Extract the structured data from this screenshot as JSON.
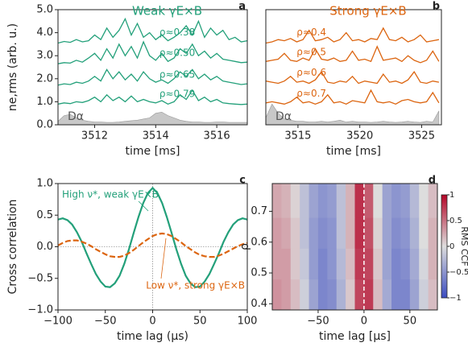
{
  "chart_data": [
    {
      "type": "line",
      "label": "a",
      "title": "Weak γE×B",
      "title_color": "#23a07a",
      "xlabel": "time [ms]",
      "ylabel": "ne,rms (arb. u.)",
      "xlim": [
        3510.8,
        3517
      ],
      "ylim": [
        0,
        5
      ],
      "xticks": [
        3512,
        3514,
        3516
      ],
      "yticks": [
        {
          "value": 0,
          "label": "0.0"
        },
        {
          "value": 1,
          "label": "1.0"
        },
        {
          "value": 2,
          "label": "2.0"
        },
        {
          "value": 3,
          "label": "3.0"
        },
        {
          "value": 4,
          "label": "4.0"
        },
        {
          "value": 5,
          "label": "5.0"
        }
      ],
      "x": [
        3510.8,
        3511,
        3511.2,
        3511.4,
        3511.6,
        3511.8,
        3512,
        3512.2,
        3512.4,
        3512.6,
        3512.8,
        3513,
        3513.2,
        3513.4,
        3513.6,
        3513.8,
        3514,
        3514.2,
        3514.4,
        3514.6,
        3514.8,
        3515,
        3515.2,
        3515.4,
        3515.6,
        3515.8,
        3516,
        3516.2,
        3516.4,
        3516.6,
        3516.8,
        3517
      ],
      "area": {
        "name": "Dα",
        "color": "#c8c8c8",
        "values": [
          0.15,
          0.4,
          0.45,
          0.3,
          0.2,
          0.15,
          0.12,
          0.12,
          0.1,
          0.1,
          0.12,
          0.15,
          0.18,
          0.2,
          0.25,
          0.3,
          0.5,
          0.55,
          0.4,
          0.3,
          0.2,
          0.15,
          0.12,
          0.12,
          0.1,
          0.1,
          0.12,
          0.12,
          0.1,
          0.1,
          0.1,
          0.1
        ]
      },
      "series": [
        {
          "name": "ρ≈0.38",
          "color": "#23a07a",
          "values": [
            3.55,
            3.62,
            3.58,
            3.7,
            3.6,
            3.65,
            3.9,
            3.7,
            4.2,
            3.8,
            4.1,
            4.6,
            3.9,
            4.4,
            3.8,
            4.0,
            3.7,
            3.9,
            3.65,
            3.8,
            4.0,
            4.3,
            3.9,
            4.5,
            3.8,
            4.2,
            3.9,
            4.1,
            3.7,
            3.8,
            3.6,
            3.65
          ]
        },
        {
          "name": "ρ≈0.50",
          "color": "#23a07a",
          "values": [
            2.65,
            2.7,
            2.68,
            2.8,
            2.72,
            2.9,
            3.1,
            2.8,
            3.3,
            2.9,
            3.5,
            3.0,
            3.4,
            2.9,
            3.6,
            3.0,
            2.8,
            3.1,
            2.75,
            2.9,
            3.3,
            3.1,
            3.5,
            3.0,
            3.2,
            2.9,
            3.1,
            2.85,
            2.8,
            2.75,
            2.7,
            2.72
          ]
        },
        {
          "name": "ρ≈0.65",
          "color": "#23a07a",
          "values": [
            1.72,
            1.78,
            1.75,
            1.85,
            1.8,
            1.9,
            2.1,
            1.9,
            2.4,
            2.0,
            2.3,
            1.95,
            2.2,
            1.9,
            2.3,
            2.0,
            1.85,
            1.95,
            1.8,
            2.0,
            2.3,
            2.1,
            2.4,
            2.0,
            2.2,
            1.95,
            2.1,
            1.9,
            1.85,
            1.8,
            1.75,
            1.78
          ]
        },
        {
          "name": "ρ≈0.79",
          "color": "#23a07a",
          "values": [
            0.9,
            0.95,
            0.92,
            1.0,
            0.97,
            1.05,
            1.2,
            1.0,
            1.3,
            1.05,
            1.2,
            1.0,
            1.25,
            1.0,
            1.1,
            1.0,
            0.95,
            1.05,
            0.9,
            1.0,
            1.3,
            1.1,
            1.5,
            1.05,
            1.2,
            1.0,
            1.1,
            0.95,
            0.92,
            0.9,
            0.88,
            0.9
          ]
        }
      ]
    },
    {
      "type": "line",
      "label": "b",
      "title": "Strong γE×B",
      "title_color": "#dc6510",
      "xlabel": "time [ms]",
      "xlim": [
        3512.4,
        3526.6
      ],
      "ylim": [
        0,
        5
      ],
      "xticks": [
        3515,
        3520,
        3525
      ],
      "x": [
        3512.4,
        3512.9,
        3513.4,
        3513.9,
        3514.4,
        3514.9,
        3515.4,
        3515.9,
        3516.4,
        3516.9,
        3517.4,
        3517.9,
        3518.4,
        3518.9,
        3519.4,
        3519.9,
        3520.4,
        3520.9,
        3521.4,
        3521.9,
        3522.4,
        3522.9,
        3523.4,
        3523.9,
        3524.4,
        3524.9,
        3525.4,
        3525.9,
        3526.4
      ],
      "area": {
        "name": "Dα",
        "color": "#c8c8c8",
        "values": [
          0.3,
          0.9,
          0.5,
          0.25,
          0.2,
          0.15,
          0.15,
          0.12,
          0.12,
          0.15,
          0.12,
          0.15,
          0.2,
          0.12,
          0.15,
          0.12,
          0.12,
          0.1,
          0.12,
          0.15,
          0.12,
          0.1,
          0.12,
          0.15,
          0.12,
          0.1,
          0.15,
          0.12,
          0.6
        ]
      },
      "series": [
        {
          "name": "ρ≈0.4",
          "color": "#dc6510",
          "values": [
            3.55,
            3.6,
            3.7,
            3.65,
            3.75,
            3.6,
            3.7,
            4.1,
            3.65,
            3.7,
            3.8,
            3.6,
            3.7,
            4.0,
            3.65,
            3.7,
            3.6,
            3.75,
            3.7,
            4.2,
            3.7,
            3.65,
            3.8,
            3.6,
            3.7,
            3.9,
            3.6,
            3.65,
            3.7
          ]
        },
        {
          "name": "ρ≈0.5",
          "color": "#dc6510",
          "values": [
            2.75,
            2.8,
            2.85,
            3.1,
            2.8,
            2.75,
            2.9,
            2.8,
            3.3,
            2.85,
            2.8,
            2.9,
            2.75,
            2.8,
            3.2,
            2.8,
            2.85,
            2.75,
            3.4,
            2.8,
            2.85,
            2.9,
            2.75,
            3.0,
            2.8,
            2.7,
            2.8,
            3.2,
            2.75
          ]
        },
        {
          "name": "ρ≈0.6",
          "color": "#dc6510",
          "values": [
            1.9,
            1.85,
            1.8,
            1.9,
            2.1,
            1.85,
            1.9,
            1.8,
            1.95,
            2.3,
            1.85,
            1.8,
            1.9,
            1.85,
            2.1,
            1.8,
            1.9,
            1.85,
            1.8,
            2.2,
            1.85,
            1.9,
            1.8,
            1.95,
            2.3,
            1.85,
            1.8,
            1.9,
            1.85
          ]
        },
        {
          "name": "ρ≈0.7",
          "color": "#dc6510",
          "values": [
            0.95,
            1.0,
            0.95,
            0.9,
            1.0,
            1.2,
            0.95,
            1.0,
            0.9,
            1.0,
            1.3,
            0.95,
            1.0,
            0.9,
            1.05,
            1.0,
            0.95,
            1.5,
            1.0,
            0.95,
            1.0,
            0.9,
            1.05,
            1.1,
            1.0,
            0.95,
            1.0,
            1.4,
            0.95
          ]
        }
      ]
    },
    {
      "type": "line",
      "label": "c",
      "xlabel": "time lag (µs)",
      "ylabel": "Cross correlation",
      "xlim": [
        -100,
        100
      ],
      "ylim": [
        -1,
        1
      ],
      "xticks": [
        {
          "value": -100,
          "label": "−100"
        },
        {
          "value": -50,
          "label": "−50"
        },
        0,
        50,
        100
      ],
      "yticks": [
        {
          "value": -1,
          "label": "−1.0"
        },
        {
          "value": -0.5,
          "label": "−0.5"
        },
        {
          "value": 0,
          "label": "0.0"
        },
        {
          "value": 0.5,
          "label": "0.5"
        },
        {
          "value": 1,
          "label": "1.0"
        }
      ],
      "hlines": [
        0
      ],
      "vlines": [
        0
      ],
      "x": [
        -100,
        -95,
        -90,
        -85,
        -80,
        -75,
        -70,
        -65,
        -60,
        -55,
        -50,
        -45,
        -40,
        -35,
        -30,
        -25,
        -20,
        -15,
        -10,
        -5,
        0,
        5,
        10,
        15,
        20,
        25,
        30,
        35,
        40,
        45,
        50,
        55,
        60,
        65,
        70,
        75,
        80,
        85,
        90,
        95,
        100
      ],
      "series": [
        {
          "name": "High ν*, weak γE×B",
          "color": "#23a07a",
          "dashed": false,
          "values": [
            0.43,
            0.45,
            0.42,
            0.35,
            0.23,
            0.08,
            -0.1,
            -0.27,
            -0.43,
            -0.55,
            -0.63,
            -0.64,
            -0.58,
            -0.46,
            -0.27,
            -0.04,
            0.22,
            0.47,
            0.69,
            0.85,
            0.93,
            0.85,
            0.69,
            0.47,
            0.22,
            -0.04,
            -0.27,
            -0.46,
            -0.58,
            -0.64,
            -0.63,
            -0.55,
            -0.43,
            -0.27,
            -0.1,
            0.08,
            0.23,
            0.35,
            0.42,
            0.45,
            0.43
          ]
        },
        {
          "name": "Low ν*, strong γE×B",
          "color": "#dc6510",
          "dashed": true,
          "values": [
            0.02,
            0.06,
            0.09,
            0.1,
            0.1,
            0.08,
            0.05,
            0.01,
            -0.04,
            -0.08,
            -0.12,
            -0.15,
            -0.16,
            -0.16,
            -0.14,
            -0.1,
            -0.05,
            0.01,
            0.07,
            0.12,
            0.17,
            0.2,
            0.21,
            0.2,
            0.17,
            0.12,
            0.07,
            0.01,
            -0.04,
            -0.09,
            -0.13,
            -0.15,
            -0.16,
            -0.16,
            -0.14,
            -0.11,
            -0.07,
            -0.03,
            0.01,
            0.04,
            0.06
          ]
        }
      ]
    },
    {
      "type": "heatmap",
      "label": "d",
      "xlabel": "time lag [µs]",
      "ylabel": "ρ",
      "xlim": [
        -100,
        80
      ],
      "ylim": [
        0.38,
        0.79
      ],
      "xticks": [
        {
          "value": -50,
          "label": "−50"
        },
        0,
        50
      ],
      "yticks": [
        0.4,
        0.5,
        0.6,
        0.7
      ],
      "vlines": [
        0
      ],
      "x": [
        -95,
        -85,
        -75,
        -65,
        -55,
        -45,
        -35,
        -25,
        -15,
        -5,
        5,
        15,
        25,
        35,
        45,
        55,
        65,
        75
      ],
      "y": [
        0.43,
        0.53,
        0.63,
        0.73
      ],
      "z": [
        [
          0.35,
          0.3,
          0.15,
          -0.1,
          -0.4,
          -0.6,
          -0.55,
          -0.3,
          0.1,
          0.7,
          0.75,
          0.15,
          -0.35,
          -0.6,
          -0.6,
          -0.4,
          -0.1,
          0.15
        ],
        [
          0.3,
          0.3,
          0.1,
          -0.15,
          -0.45,
          -0.6,
          -0.5,
          -0.25,
          0.15,
          0.75,
          0.7,
          0.1,
          -0.4,
          -0.6,
          -0.55,
          -0.35,
          -0.05,
          0.2
        ],
        [
          0.3,
          0.25,
          0.1,
          -0.2,
          -0.45,
          -0.55,
          -0.5,
          -0.2,
          0.2,
          0.8,
          0.65,
          0.05,
          -0.4,
          -0.55,
          -0.5,
          -0.3,
          0.0,
          0.2
        ],
        [
          0.25,
          0.2,
          0.05,
          -0.2,
          -0.4,
          -0.5,
          -0.45,
          -0.2,
          0.2,
          0.8,
          0.6,
          0.0,
          -0.4,
          -0.5,
          -0.45,
          -0.25,
          0.0,
          0.15
        ]
      ],
      "colorbar": {
        "label": "RMS CCF",
        "lim": [
          -1,
          1
        ],
        "ticks": [
          {
            "value": -1,
            "label": "−1"
          },
          {
            "value": -0.5,
            "label": "−0.5"
          },
          0,
          0.5,
          1
        ]
      }
    }
  ]
}
